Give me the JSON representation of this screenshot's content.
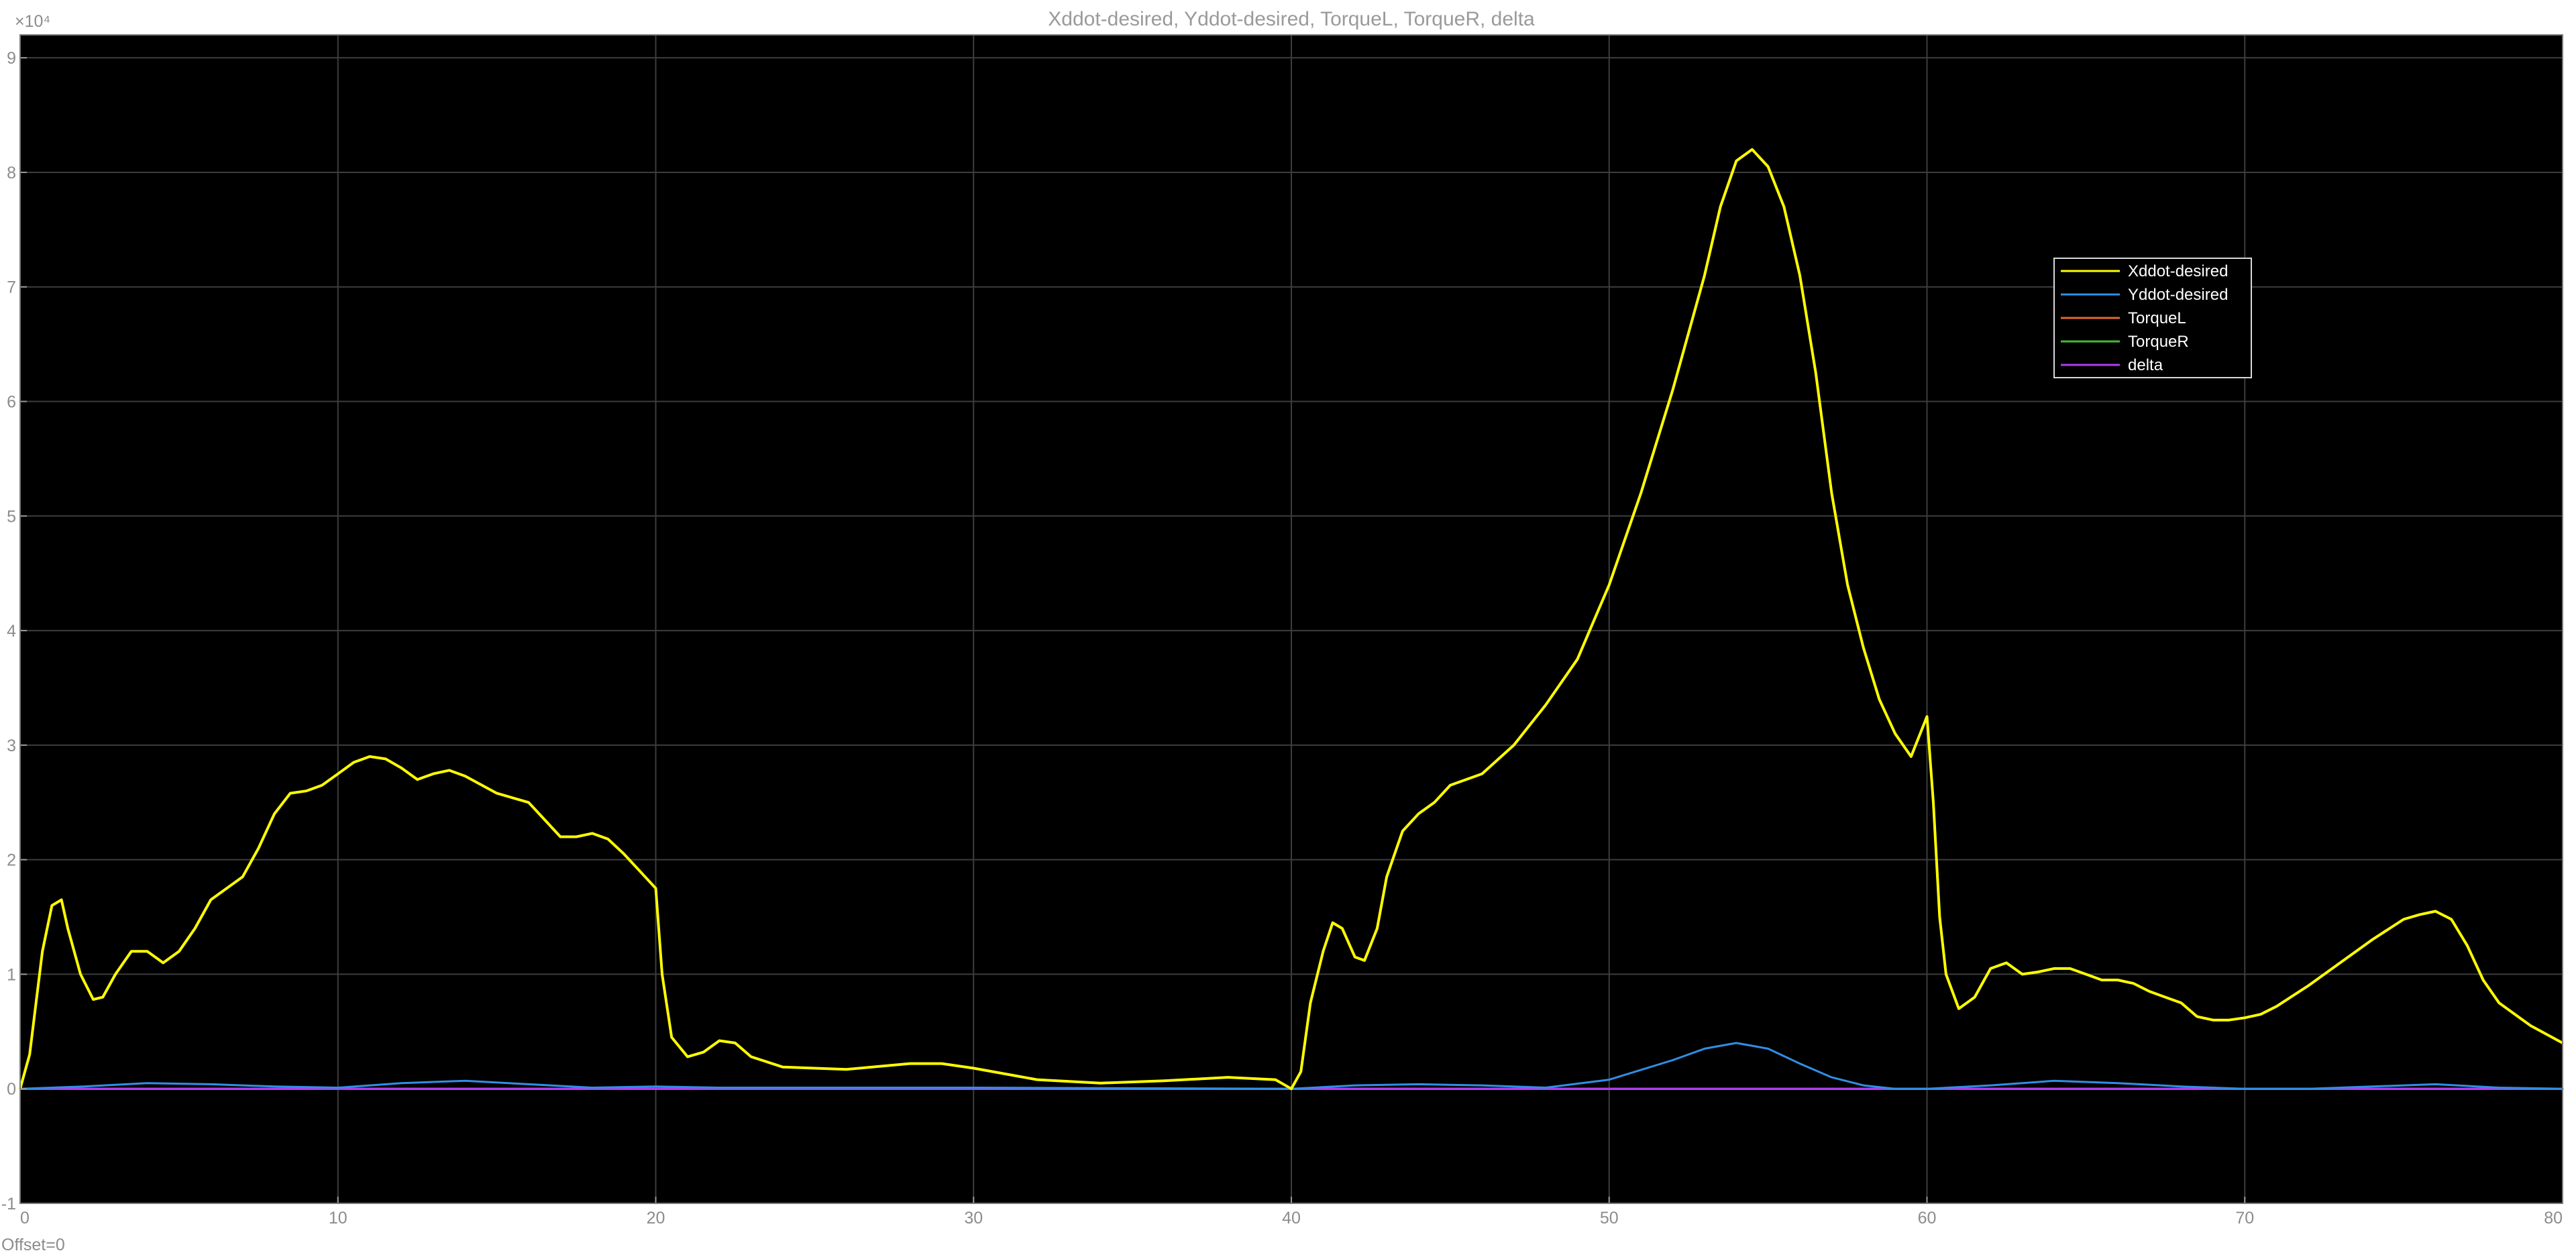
{
  "chart_data": {
    "type": "line",
    "title": "Xddot-desired, Yddot-desired, TorqueL, TorqueR, delta",
    "xlabel": "",
    "ylabel": "",
    "xlim": [
      0,
      80
    ],
    "ylim": [
      -10000,
      92000
    ],
    "x_ticks": [
      0,
      10,
      20,
      30,
      40,
      50,
      60,
      70,
      80
    ],
    "y_ticks": [
      -1,
      0,
      1,
      2,
      3,
      4,
      5,
      6,
      7,
      8,
      9
    ],
    "y_exponent_label": "×10⁴",
    "y_scale": 10000,
    "grid": true,
    "legend_position": "top-right",
    "background": "#000000",
    "offset_label": "Offset=0",
    "series": [
      {
        "name": "Xddot-desired",
        "color": "#ffff00",
        "x": [
          0,
          0.3,
          0.7,
          1.0,
          1.3,
          1.5,
          1.9,
          2.3,
          2.6,
          3.0,
          3.5,
          4.0,
          4.5,
          5.0,
          5.5,
          6.0,
          7.0,
          7.5,
          8.0,
          8.5,
          9.0,
          9.5,
          10.0,
          10.5,
          11.0,
          11.5,
          12.0,
          12.5,
          13.0,
          13.5,
          14.0,
          15.0,
          16.0,
          16.5,
          17.0,
          17.5,
          18.0,
          18.5,
          19.0,
          19.5,
          20.0,
          20.2,
          20.5,
          21.0,
          21.5,
          22.0,
          22.5,
          23.0,
          24.0,
          26.0,
          28.0,
          29.0,
          30.0,
          32.0,
          34.0,
          36.0,
          38.0,
          39.5,
          40.0,
          40.3,
          40.6,
          41.0,
          41.3,
          41.6,
          42.0,
          42.3,
          42.7,
          43.0,
          43.5,
          44.0,
          44.5,
          45.0,
          45.5,
          46.0,
          47.0,
          48.0,
          49.0,
          50.0,
          51.0,
          52.0,
          53.0,
          53.5,
          54.0,
          54.5,
          55.0,
          55.5,
          56.0,
          56.5,
          57.0,
          57.5,
          58.0,
          58.5,
          59.0,
          59.5,
          60.0,
          60.2,
          60.4,
          60.6,
          61.0,
          61.5,
          62.0,
          62.5,
          63.0,
          63.5,
          64.0,
          64.5,
          65.0,
          65.5,
          66.0,
          66.5,
          67.0,
          67.5,
          68.0,
          68.5,
          69.0,
          69.5,
          70.0,
          70.5,
          71.0,
          72.0,
          73.0,
          74.0,
          75.0,
          75.5,
          76.0,
          76.5,
          77.0,
          77.5,
          78.0,
          79.0,
          80.0
        ],
        "y": [
          0,
          3000,
          12000,
          16000,
          16500,
          14000,
          10000,
          7800,
          8000,
          10000,
          12000,
          12000,
          11000,
          12000,
          14000,
          16500,
          18500,
          21000,
          24000,
          25800,
          26000,
          26500,
          27500,
          28500,
          29000,
          28800,
          28000,
          27000,
          27500,
          27800,
          27300,
          25800,
          25000,
          23500,
          22000,
          22000,
          22300,
          21800,
          20500,
          19000,
          17500,
          10000,
          4500,
          2800,
          3200,
          4200,
          4000,
          2800,
          1900,
          1700,
          2200,
          2200,
          1800,
          800,
          500,
          700,
          1000,
          800,
          0,
          1500,
          7500,
          12000,
          14500,
          14000,
          11500,
          11200,
          14000,
          18500,
          22500,
          24000,
          25000,
          26500,
          27000,
          27500,
          30000,
          33500,
          37500,
          44000,
          52000,
          61000,
          71000,
          77000,
          81000,
          82000,
          80500,
          77000,
          71000,
          62500,
          52000,
          44000,
          38500,
          34000,
          31000,
          29000,
          32500,
          25000,
          15000,
          10000,
          7000,
          8000,
          10500,
          11000,
          10000,
          10200,
          10500,
          10500,
          10000,
          9500,
          9500,
          9200,
          8500,
          8000,
          7500,
          6300,
          6000,
          6000,
          6200,
          6500,
          7200,
          9000,
          11000,
          13000,
          14800,
          15200,
          15500,
          14800,
          12500,
          9500,
          7500,
          5500,
          4000
        ]
      },
      {
        "name": "Yddot-desired",
        "color": "#2f8fe6",
        "x": [
          0,
          2,
          4,
          6,
          8,
          10,
          12,
          14,
          16,
          18,
          20,
          22,
          24,
          30,
          40,
          42,
          44,
          46,
          48,
          50,
          52,
          53,
          54,
          55,
          56,
          57,
          58,
          59,
          60,
          62,
          64,
          66,
          68,
          70,
          72,
          74,
          76,
          78,
          80
        ],
        "y": [
          0,
          200,
          500,
          400,
          200,
          100,
          500,
          700,
          400,
          100,
          200,
          100,
          100,
          100,
          0,
          300,
          400,
          300,
          100,
          800,
          2500,
          3500,
          4000,
          3500,
          2200,
          1000,
          300,
          0,
          0,
          300,
          700,
          500,
          200,
          0,
          0,
          200,
          400,
          100,
          0
        ]
      },
      {
        "name": "TorqueL",
        "color": "#e06a2c",
        "x": [
          0,
          80
        ],
        "y": [
          0,
          0
        ]
      },
      {
        "name": "TorqueR",
        "color": "#3fbf2f",
        "x": [
          0,
          80
        ],
        "y": [
          0,
          0
        ]
      },
      {
        "name": "delta",
        "color": "#b13cf0",
        "x": [
          0,
          80
        ],
        "y": [
          0,
          0
        ]
      }
    ]
  }
}
